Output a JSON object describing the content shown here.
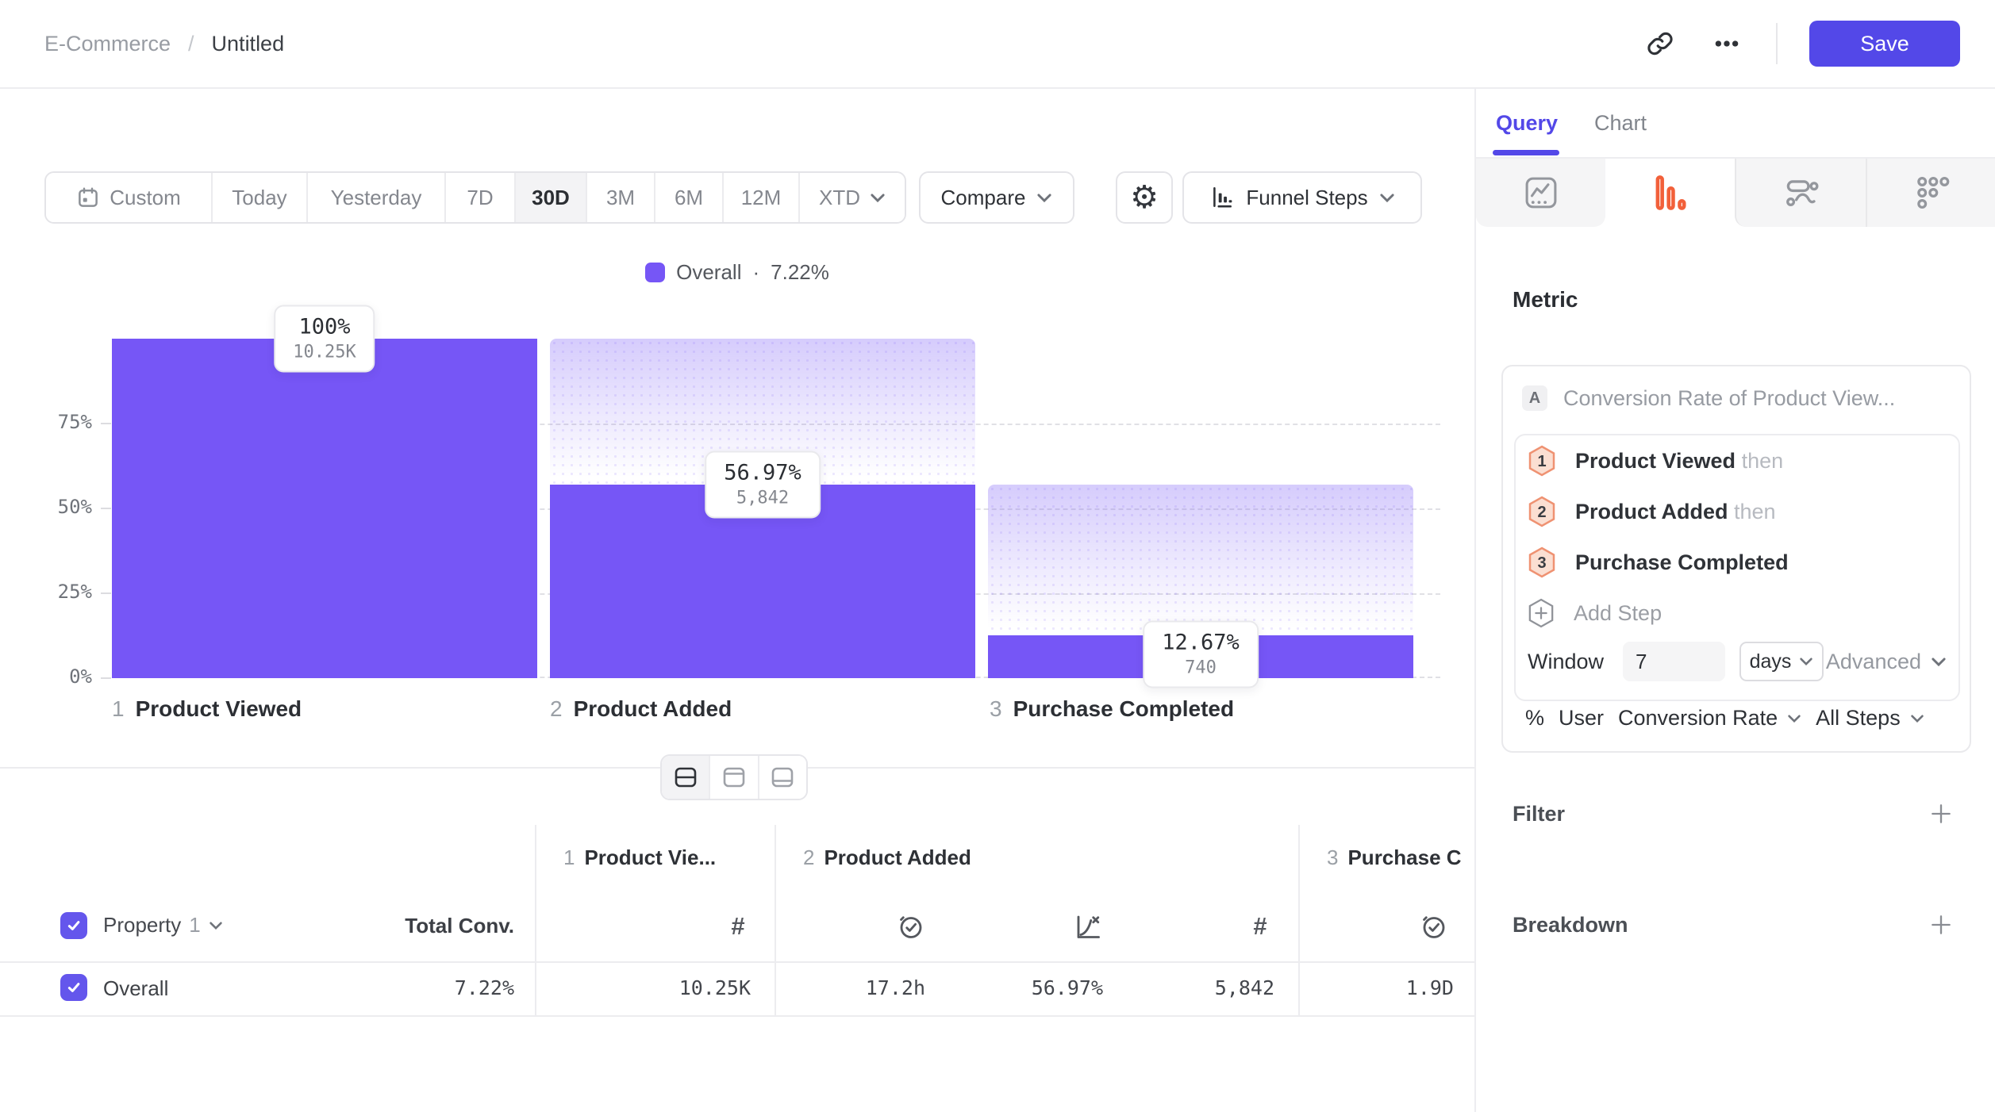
{
  "header": {
    "breadcrumb_parent": "E-Commerce",
    "breadcrumb_separator": "/",
    "breadcrumb_current": "Untitled",
    "save_label": "Save"
  },
  "toolbar": {
    "date_ranges": [
      "Custom",
      "Today",
      "Yesterday",
      "7D",
      "30D",
      "3M",
      "6M",
      "12M",
      "XTD"
    ],
    "selected_range": "30D",
    "compare_label": "Compare",
    "chart_type_label": "Funnel Steps"
  },
  "legend": {
    "label": "Overall",
    "separator": "·",
    "value": "7.22%"
  },
  "chart_data": {
    "type": "bar",
    "subtype": "funnel-steps",
    "title": "Funnel Steps",
    "legend_position": "top-center",
    "grid": "dashed-horizontal",
    "bar_color": "#7656f6",
    "ylim": [
      0,
      100
    ],
    "yticks": [
      "75%",
      "50%",
      "25%",
      "0%"
    ],
    "categories": [
      "Product Viewed",
      "Product Added",
      "Purchase Completed"
    ],
    "series": [
      {
        "name": "Overall",
        "conversion_pct": [
          100,
          56.97,
          12.67
        ],
        "counts": [
          10250,
          5842,
          740
        ]
      }
    ],
    "points": [
      {
        "step_num": "1",
        "name": "Product Viewed",
        "pct": 100,
        "pct_label": "100%",
        "count_label": "10.25K"
      },
      {
        "step_num": "2",
        "name": "Product Added",
        "pct": 56.97,
        "pct_label": "56.97%",
        "count_label": "5,842"
      },
      {
        "step_num": "3",
        "name": "Purchase Completed",
        "pct": 12.67,
        "pct_label": "12.67%",
        "count_label": "740"
      }
    ]
  },
  "table": {
    "property_label": "Property",
    "property_index": "1",
    "total_conv_header": "Total Conv.",
    "columns": [
      {
        "step_num": "1",
        "name": "Product Vie...",
        "metrics": [
          "count"
        ]
      },
      {
        "step_num": "2",
        "name": "Product Added",
        "metrics": [
          "avg_time",
          "conversion",
          "count"
        ]
      },
      {
        "step_num": "3",
        "name": "Purchase C",
        "metrics": [
          "avg_time"
        ]
      }
    ],
    "rows": [
      {
        "label": "Overall",
        "total_conv": "7.22%",
        "values": [
          "10.25K",
          "17.2h",
          "56.97%",
          "5,842",
          "1.9D"
        ]
      }
    ]
  },
  "panel": {
    "tabs": [
      "Query",
      "Chart"
    ],
    "active_tab": "Query",
    "metric_heading": "Metric",
    "metric": {
      "badge": "A",
      "title": "Conversion Rate of Product View...",
      "steps": [
        {
          "num": "1",
          "name": "Product Viewed",
          "suffix": "then"
        },
        {
          "num": "2",
          "name": "Product Added",
          "suffix": "then"
        },
        {
          "num": "3",
          "name": "Purchase Completed",
          "suffix": ""
        }
      ],
      "add_step_label": "Add Step",
      "window_label": "Window",
      "window_value": "7",
      "window_unit": "days",
      "advanced_label": "Advanced",
      "measure_prefix": "%",
      "measure_entity": "User",
      "measure_type": "Conversion Rate",
      "measure_scope": "All Steps"
    },
    "filter_heading": "Filter",
    "breakdown_heading": "Breakdown"
  }
}
